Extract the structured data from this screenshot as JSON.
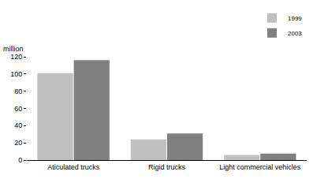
{
  "chart_data": {
    "type": "bar",
    "y_label": "million",
    "categories": [
      "Aticulated trucks",
      "Rigid trucks",
      "Light commercial vehicles"
    ],
    "series": [
      {
        "name": "1999",
        "color": "#c0c0c0",
        "values": [
          101,
          24,
          6
        ]
      },
      {
        "name": "2003",
        "color": "#808080",
        "values": [
          116,
          31,
          7.5
        ]
      }
    ],
    "ylim": [
      0,
      120
    ],
    "yticks": [
      0,
      20,
      40,
      60,
      80,
      100,
      120
    ],
    "grid": true,
    "legend": "top right"
  }
}
